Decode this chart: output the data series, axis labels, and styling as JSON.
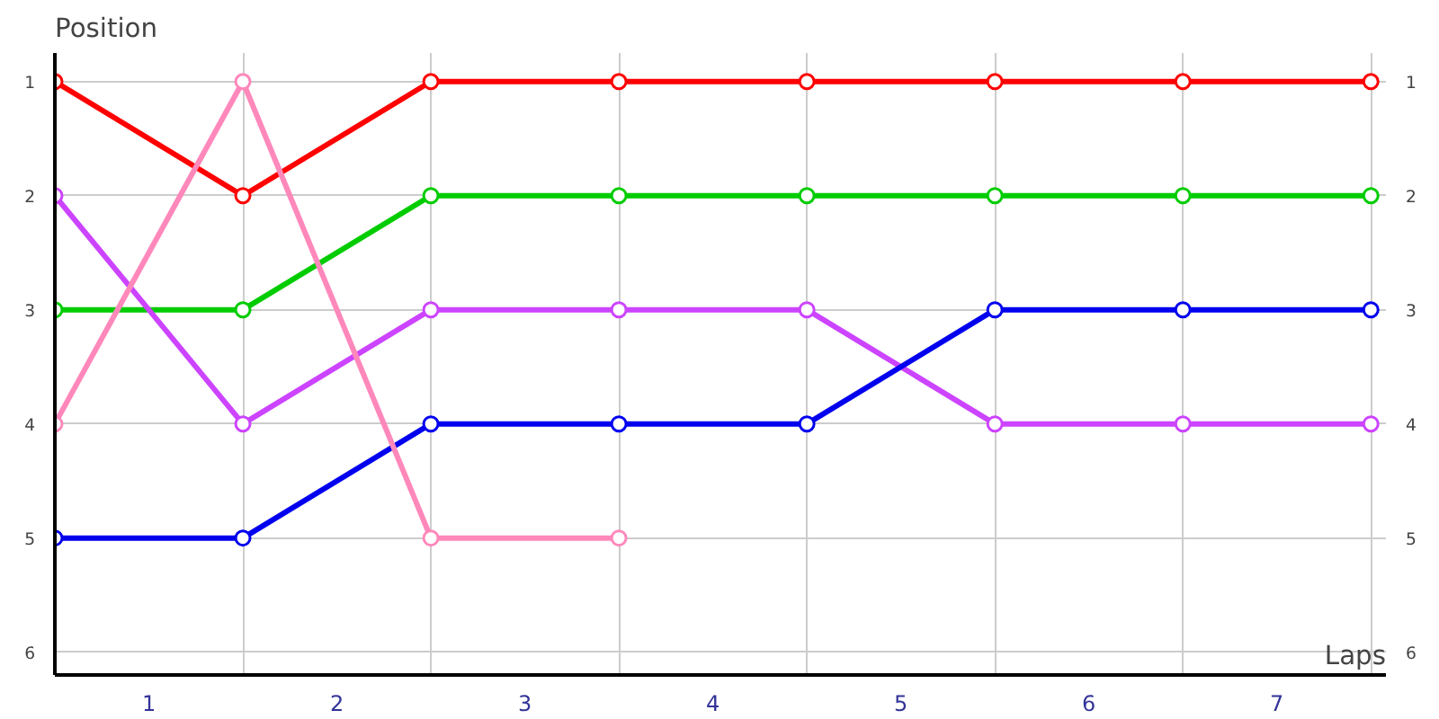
{
  "chart_data": {
    "type": "line",
    "xlabel": "Laps",
    "ylabel": "Position",
    "x": [
      0,
      1,
      2,
      3,
      4,
      5,
      6,
      7
    ],
    "series": [
      {
        "color": "#ff0000",
        "values": [
          1,
          2,
          1,
          1,
          1,
          1,
          1,
          1
        ]
      },
      {
        "color": "#00cc00",
        "values": [
          3,
          3,
          2,
          2,
          2,
          2,
          2,
          2
        ]
      },
      {
        "color": "#cc44ff",
        "values": [
          2,
          4,
          3,
          3,
          3,
          4,
          4,
          4
        ]
      },
      {
        "color": "#0000ee",
        "values": [
          5,
          5,
          4,
          4,
          4,
          3,
          3,
          3
        ]
      },
      {
        "color": "#ff88bb",
        "values": [
          4,
          1,
          5,
          5,
          null,
          null,
          null,
          null
        ]
      }
    ],
    "xlim": [
      0,
      7.08
    ],
    "ylim": [
      6.2,
      0.75
    ],
    "xticks": [
      {
        "value": 0,
        "label": null
      },
      {
        "value": 0.5,
        "label": "1"
      },
      {
        "value": 1,
        "label": null
      },
      {
        "value": 1.5,
        "label": "2"
      },
      {
        "value": 2,
        "label": null
      },
      {
        "value": 2.5,
        "label": "3"
      },
      {
        "value": 3,
        "label": null
      },
      {
        "value": 3.5,
        "label": "4"
      },
      {
        "value": 4,
        "label": null
      },
      {
        "value": 4.5,
        "label": "5"
      },
      {
        "value": 5,
        "label": null
      },
      {
        "value": 5.5,
        "label": "6"
      },
      {
        "value": 6,
        "label": null
      },
      {
        "value": 6.5,
        "label": "7"
      },
      {
        "value": 7,
        "label": null
      }
    ],
    "yticks": [
      1,
      2,
      3,
      4,
      5,
      6
    ],
    "y2lim": [
      6.2,
      0.75
    ],
    "y2ticks": [
      1,
      2,
      3,
      4,
      5,
      6
    ],
    "grid": true,
    "marker": "circle",
    "line_style": "solid"
  }
}
